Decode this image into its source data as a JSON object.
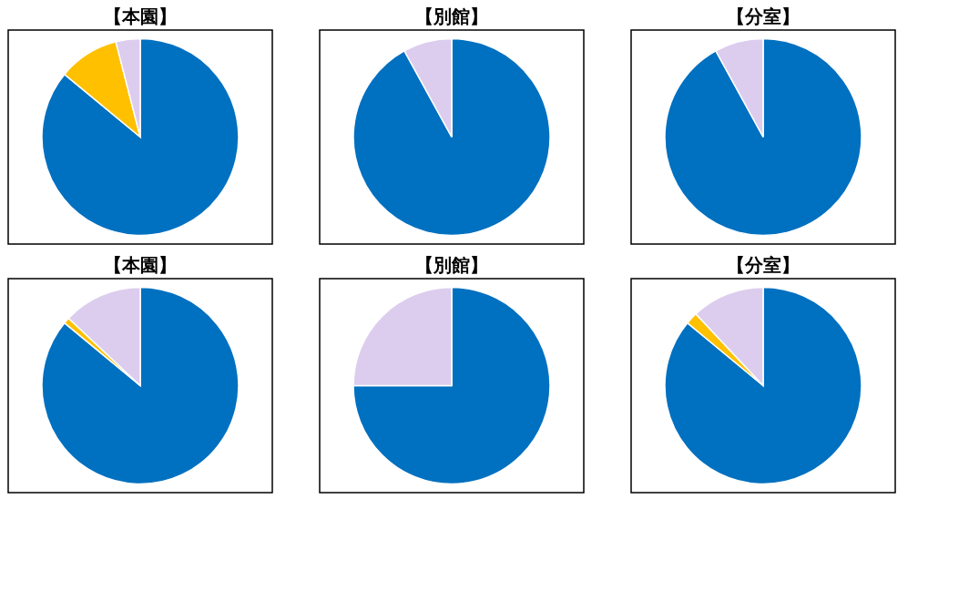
{
  "chart_data": [
    {
      "type": "pie",
      "title": "【本園】",
      "categories": [
        null,
        null,
        null
      ],
      "values": [
        86,
        10,
        4
      ],
      "colors": [
        "#0070c0",
        "#ffc000",
        "#dccdee"
      ]
    },
    {
      "type": "pie",
      "title": "【別館】",
      "categories": [
        null,
        null
      ],
      "values": [
        92,
        8
      ],
      "colors": [
        "#0070c0",
        "#dccdee"
      ]
    },
    {
      "type": "pie",
      "title": "【分室】",
      "categories": [
        null,
        null
      ],
      "values": [
        92,
        8
      ],
      "colors": [
        "#0070c0",
        "#dccdee"
      ]
    },
    {
      "type": "pie",
      "title": "【本園】",
      "categories": [
        null,
        null,
        null
      ],
      "values": [
        86,
        1,
        13
      ],
      "colors": [
        "#0070c0",
        "#ffc000",
        "#dccdee"
      ]
    },
    {
      "type": "pie",
      "title": "【別館】",
      "categories": [
        null,
        null
      ],
      "values": [
        75,
        25
      ],
      "colors": [
        "#0070c0",
        "#dccdee"
      ]
    },
    {
      "type": "pie",
      "title": "【分室】",
      "categories": [
        null,
        null,
        null
      ],
      "values": [
        86,
        2,
        12
      ],
      "colors": [
        "#0070c0",
        "#ffc000",
        "#dccdee"
      ]
    }
  ]
}
